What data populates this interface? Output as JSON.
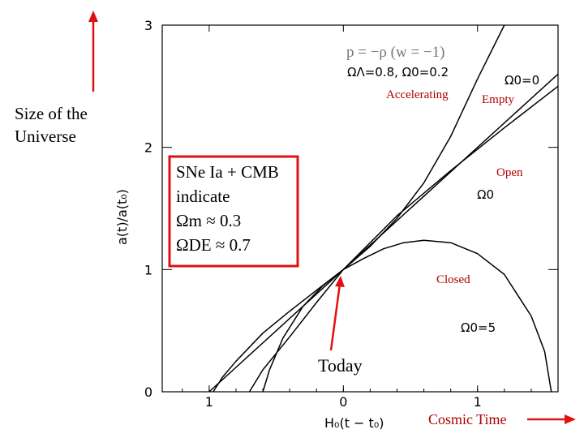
{
  "chart_data": {
    "type": "line",
    "xlabel": "H₀(t − t₀)",
    "ylabel": "a(t)/a(t₀)",
    "xlim": [
      -1.35,
      1.6
    ],
    "ylim": [
      0,
      3
    ],
    "x_ticks": [
      {
        "value": -1,
        "label": "1"
      },
      {
        "value": 0,
        "label": "0"
      },
      {
        "value": 1,
        "label": "1"
      }
    ],
    "y_ticks": [
      {
        "value": 0,
        "label": "0"
      },
      {
        "value": 1,
        "label": "1"
      },
      {
        "value": 2,
        "label": "2"
      },
      {
        "value": 3,
        "label": "3"
      }
    ],
    "series": [
      {
        "name": "ΩΛ=0.8, Ω0=0.2",
        "points": [
          [
            -0.97,
            0
          ],
          [
            -0.9,
            0.12
          ],
          [
            -0.8,
            0.25
          ],
          [
            -0.6,
            0.48
          ],
          [
            -0.4,
            0.66
          ],
          [
            -0.2,
            0.83
          ],
          [
            0,
            1
          ],
          [
            0.2,
            1.19
          ],
          [
            0.4,
            1.42
          ],
          [
            0.6,
            1.71
          ],
          [
            0.8,
            2.09
          ],
          [
            1.0,
            2.56
          ],
          [
            1.2,
            3.0
          ]
        ]
      },
      {
        "name": "Ω0=0",
        "points": [
          [
            -1.0,
            0
          ],
          [
            0,
            1
          ],
          [
            1.6,
            2.6
          ]
        ]
      },
      {
        "name": "Ω0",
        "points": [
          [
            -0.7,
            0
          ],
          [
            -0.6,
            0.18
          ],
          [
            -0.4,
            0.45
          ],
          [
            -0.2,
            0.73
          ],
          [
            0,
            1
          ],
          [
            0.4,
            1.44
          ],
          [
            0.8,
            1.81
          ],
          [
            1.2,
            2.16
          ],
          [
            1.6,
            2.5
          ]
        ]
      },
      {
        "name": "Ω0=5",
        "points": [
          [
            -0.6,
            0
          ],
          [
            -0.55,
            0.18
          ],
          [
            -0.45,
            0.44
          ],
          [
            -0.3,
            0.7
          ],
          [
            -0.15,
            0.87
          ],
          [
            0,
            1
          ],
          [
            0.15,
            1.09
          ],
          [
            0.3,
            1.17
          ],
          [
            0.45,
            1.22
          ],
          [
            0.6,
            1.24
          ],
          [
            0.8,
            1.22
          ],
          [
            1.0,
            1.13
          ],
          [
            1.2,
            0.96
          ],
          [
            1.4,
            0.62
          ],
          [
            1.5,
            0.33
          ],
          [
            1.55,
            0
          ]
        ]
      }
    ]
  },
  "annotations": {
    "eos": "p = −ρ (w = −1)",
    "lambda_label": "ΩΛ=0.8,  Ω0=0.2",
    "accelerating": "Accelerating",
    "empty": "Empty",
    "omega0_zero": "Ω0=0",
    "open": "Open",
    "omega0_open": "Ω0",
    "closed": "Closed",
    "omega0_five": "Ω0=5",
    "size_line1": "Size of the",
    "size_line2": "Universe",
    "today": "Today",
    "cosmic_time": "Cosmic Time"
  },
  "callout": {
    "line1": "SNe Ia + CMB",
    "line2": "indicate",
    "line3": "Ωm ≈ 0.3",
    "line4": "ΩDE ≈ 0.7"
  },
  "colors": {
    "axis": "#000000",
    "curve": "#000000",
    "accent": "#e01010",
    "label_red": "#b00000"
  }
}
